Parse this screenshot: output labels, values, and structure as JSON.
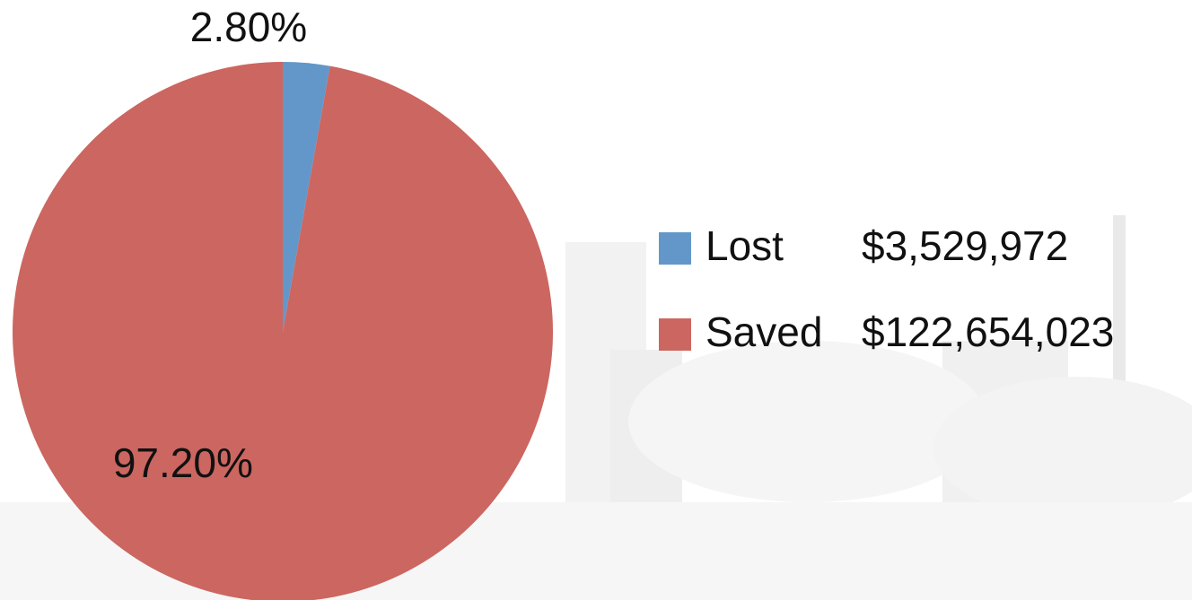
{
  "chart_data": {
    "type": "pie",
    "categories": [
      "Lost",
      "Saved"
    ],
    "values": [
      2.8,
      97.2
    ],
    "value_labels": [
      "2.80%",
      "97.20%"
    ],
    "colors": [
      "#6397c9",
      "#cc6660"
    ],
    "legend_amounts": [
      "$3,529,972",
      "$122,654,023"
    ],
    "legend": "right"
  }
}
